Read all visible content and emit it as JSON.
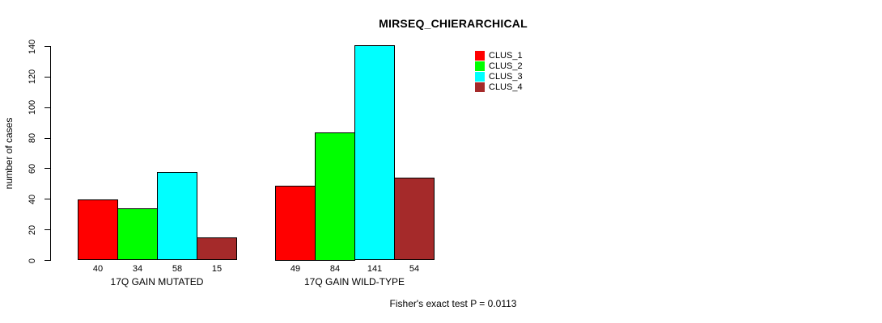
{
  "title": "MIRSEQ_CHIERARCHICAL",
  "footnote": "Fisher's exact test P = 0.0113",
  "chart_data": {
    "type": "bar",
    "grouped": true,
    "title": "MIRSEQ_CHIERARCHICAL",
    "xlabel": "",
    "ylabel": "number of cases",
    "categories": [
      "17Q GAIN MUTATED",
      "17Q GAIN WILD-TYPE"
    ],
    "series": [
      {
        "name": "CLUS_1",
        "color": "#FF0000",
        "values": [
          40,
          49
        ]
      },
      {
        "name": "CLUS_2",
        "color": "#00FF00",
        "values": [
          34,
          84
        ]
      },
      {
        "name": "CLUS_3",
        "color": "#00FFFF",
        "values": [
          58,
          141
        ]
      },
      {
        "name": "CLUS_4",
        "color": "#A52A2A",
        "values": [
          15,
          54
        ]
      }
    ],
    "bar_value_labels_shown": true,
    "ylim": [
      0,
      140
    ],
    "yticks": [
      0,
      20,
      40,
      60,
      80,
      100,
      120,
      140
    ],
    "grid": false,
    "legend_position": "top-right",
    "annotation": "Fisher's exact test P = 0.0113"
  }
}
